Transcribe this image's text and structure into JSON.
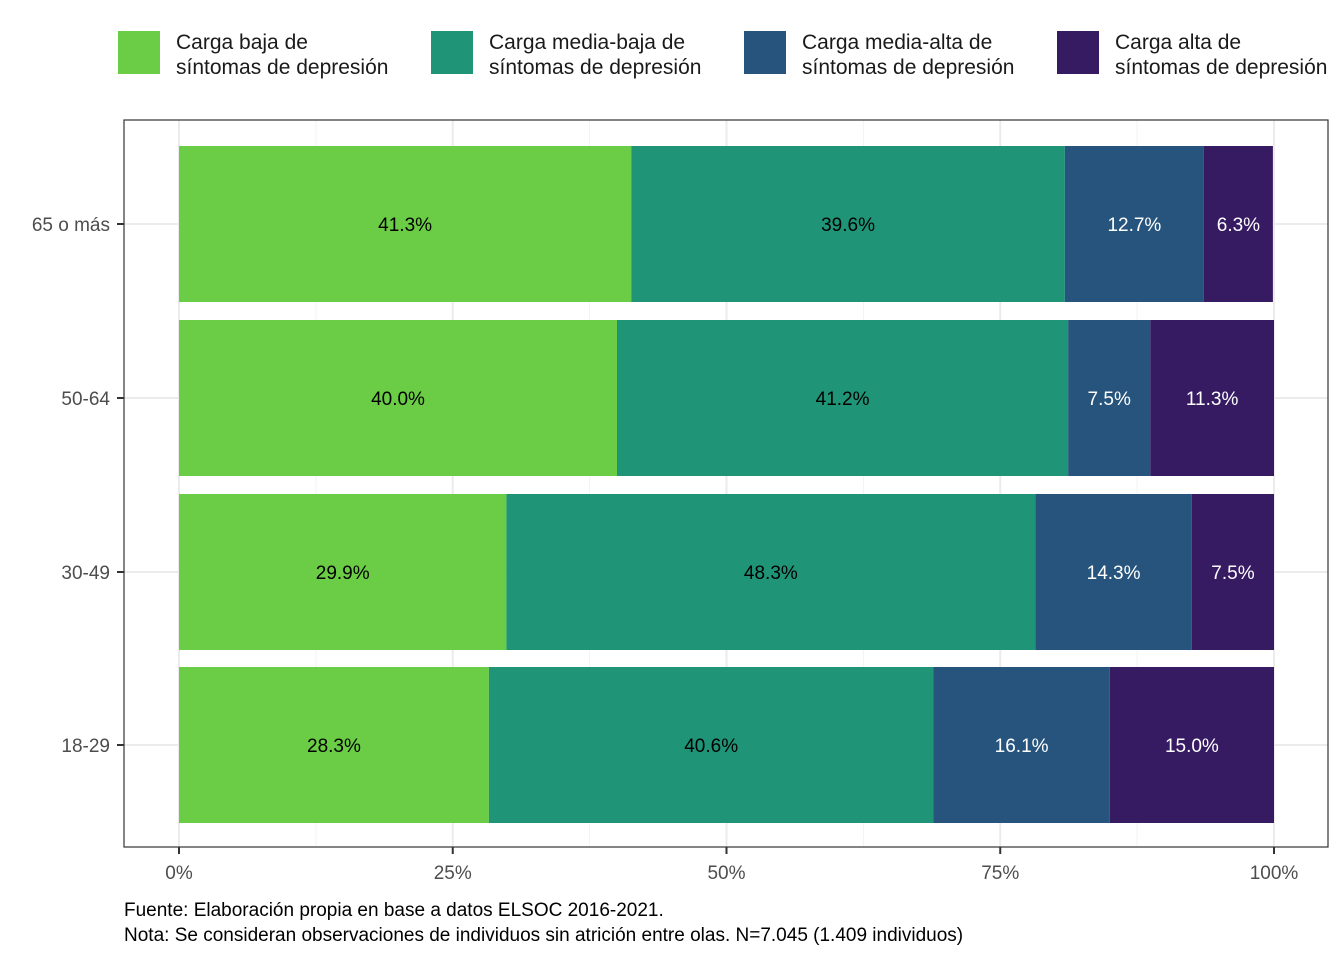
{
  "chart_data": {
    "type": "bar",
    "orientation": "horizontal",
    "stacked": true,
    "categories": [
      "65 o más",
      "50-64",
      "30-49",
      "18-29"
    ],
    "series": [
      {
        "name": [
          "Carga baja de",
          "síntomas de depresión"
        ],
        "color": "#6ACD45",
        "label_color": "#000000",
        "values": [
          41.3,
          40.0,
          29.9,
          28.3
        ],
        "labels": [
          "41.3%",
          "40.0%",
          "29.9%",
          "28.3%"
        ]
      },
      {
        "name": [
          "Carga media-baja de",
          "síntomas de depresión"
        ],
        "color": "#1F9477",
        "label_color": "#000000",
        "values": [
          39.6,
          41.2,
          48.3,
          40.6
        ],
        "labels": [
          "39.6%",
          "41.2%",
          "48.3%",
          "40.6%"
        ]
      },
      {
        "name": [
          "Carga media-alta de",
          "síntomas de depresión"
        ],
        "color": "#26547C",
        "label_color": "#ffffff",
        "values": [
          12.7,
          7.5,
          14.3,
          16.1
        ],
        "labels": [
          "12.7%",
          "7.5%",
          "14.3%",
          "16.1%"
        ]
      },
      {
        "name": [
          "Carga alta de",
          "síntomas de depresión"
        ],
        "color": "#361B63",
        "label_color": "#ffffff",
        "values": [
          6.3,
          11.3,
          7.5,
          15.0
        ],
        "labels": [
          "6.3%",
          "11.3%",
          "7.5%",
          "15.0%"
        ]
      }
    ],
    "xlim": [
      0,
      100
    ],
    "x_ticks": [
      0,
      25,
      50,
      75,
      100
    ],
    "x_tick_labels": [
      "0%",
      "25%",
      "50%",
      "75%",
      "100%"
    ],
    "grid": true,
    "legend_position": "top"
  },
  "caption": {
    "source": "Fuente: Elaboración propia en base a datos ELSOC 2016-2021.",
    "note": "Nota: Se consideran observaciones de individuos sin atrición entre olas. N=7.045 (1.409 individuos)"
  }
}
